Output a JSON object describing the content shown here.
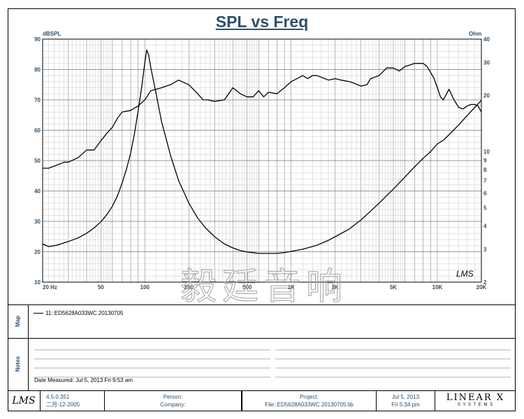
{
  "chart_data": {
    "type": "line",
    "title": "SPL vs Freq",
    "left_axis_unit": "dBSPL",
    "right_axis_unit": "Ohm",
    "x_scale": "log",
    "xlim": [
      20,
      20000
    ],
    "ylim_left": [
      10,
      90
    ],
    "ylim_right_log": [
      2,
      40
    ],
    "x_tick_labels": [
      {
        "value": 20,
        "label": "20  Hz"
      },
      {
        "value": 50,
        "label": "50"
      },
      {
        "value": 100,
        "label": "100"
      },
      {
        "value": 200,
        "label": "200"
      },
      {
        "value": 500,
        "label": "500"
      },
      {
        "value": 1000,
        "label": "1K"
      },
      {
        "value": 2000,
        "label": "2K"
      },
      {
        "value": 5000,
        "label": "5K"
      },
      {
        "value": 10000,
        "label": "10K"
      },
      {
        "value": 20000,
        "label": "20K"
      }
    ],
    "y_left_ticks": [
      10,
      20,
      30,
      40,
      50,
      60,
      70,
      80,
      90
    ],
    "y_right_ticks": [
      2,
      3,
      4,
      5,
      6,
      7,
      8,
      9,
      10,
      20,
      30,
      40
    ],
    "grid": true,
    "series": [
      {
        "axis": "left",
        "x": [
          20,
          22,
          25,
          28,
          30,
          35,
          40,
          45,
          50,
          55,
          60,
          65,
          70,
          80,
          90,
          100,
          110,
          120,
          130,
          150,
          170,
          200,
          230,
          250,
          270,
          300,
          350,
          400,
          450,
          500,
          550,
          600,
          650,
          700,
          800,
          900,
          1000,
          1100,
          1200,
          1300,
          1400,
          1500,
          1600,
          1800,
          2000,
          2200,
          2500,
          2700,
          3000,
          3300,
          3500,
          4000,
          4500,
          5000,
          5500,
          6000,
          6500,
          7000,
          7500,
          8000,
          8500,
          9000,
          9500,
          10000,
          10500,
          11000,
          12000,
          13000,
          14000,
          15000,
          16000,
          17000,
          18000,
          19000,
          20000
        ],
        "values": [
          47.5,
          47.5,
          48.5,
          49.5,
          49.5,
          51,
          53.5,
          53.5,
          56.5,
          59,
          61,
          64,
          66,
          66.5,
          68,
          70,
          73,
          73.5,
          74,
          75,
          76.5,
          75,
          72,
          70,
          70,
          69.5,
          70,
          74,
          72,
          71,
          71,
          73,
          71,
          72.5,
          72,
          74,
          76,
          77,
          78,
          77,
          78,
          78,
          77.5,
          76.5,
          77,
          76.5,
          76,
          75.5,
          74.5,
          75,
          77,
          78,
          80.5,
          80.5,
          79.5,
          81,
          81.5,
          82,
          82,
          82,
          81,
          79,
          77,
          74,
          71,
          70,
          73.5,
          70,
          67.5,
          67,
          68,
          68.5,
          68.5,
          68,
          66
        ]
      },
      {
        "axis": "right",
        "x": [
          20,
          22,
          25,
          30,
          35,
          40,
          45,
          50,
          55,
          60,
          65,
          70,
          75,
          80,
          85,
          90,
          95,
          100,
          103,
          106,
          110,
          120,
          130,
          150,
          170,
          200,
          230,
          260,
          300,
          350,
          400,
          450,
          500,
          600,
          700,
          800,
          900,
          1000,
          1200,
          1500,
          1800,
          2000,
          2500,
          3000,
          3500,
          4000,
          5000,
          6000,
          7000,
          8000,
          9000,
          10000,
          11000,
          12000,
          14000,
          16000,
          18000,
          20000
        ],
        "values": [
          3.2,
          3.1,
          3.15,
          3.3,
          3.45,
          3.65,
          3.9,
          4.2,
          4.6,
          5.1,
          5.8,
          6.8,
          8.1,
          9.8,
          12.5,
          16.5,
          22,
          30,
          35,
          33,
          28,
          20,
          14.5,
          9.5,
          7.0,
          5.3,
          4.4,
          3.9,
          3.5,
          3.2,
          3.05,
          2.95,
          2.9,
          2.85,
          2.85,
          2.85,
          2.88,
          2.92,
          3.0,
          3.15,
          3.35,
          3.5,
          3.85,
          4.3,
          4.8,
          5.3,
          6.3,
          7.3,
          8.3,
          9.2,
          10.0,
          11.0,
          11.5,
          12.3,
          13.9,
          15.6,
          17.2,
          18.8
        ]
      }
    ],
    "watermark": "毅廷音响",
    "chart_mark": "LMS"
  },
  "panels": {
    "map_label": "Map",
    "notes_label": "Notes",
    "legend_entry": "11: ED5628A033WC   20130705",
    "date_measured": "Date Measured: Jul  5, 2013  Fri  9:53 am"
  },
  "footer": {
    "logo": "LMS",
    "version": "4.5.0.351",
    "build_date": "二月-12-2005",
    "person_label": "Person:",
    "company_label": "Company:",
    "project_label": "Project:",
    "file_label": "File: ED5628A033WC  20130705.lib",
    "date": "Jul  5, 2013",
    "time": "Fri  5:34 pm",
    "brand": "LINEAR X",
    "brand_sub": "S Y S T E M S"
  }
}
